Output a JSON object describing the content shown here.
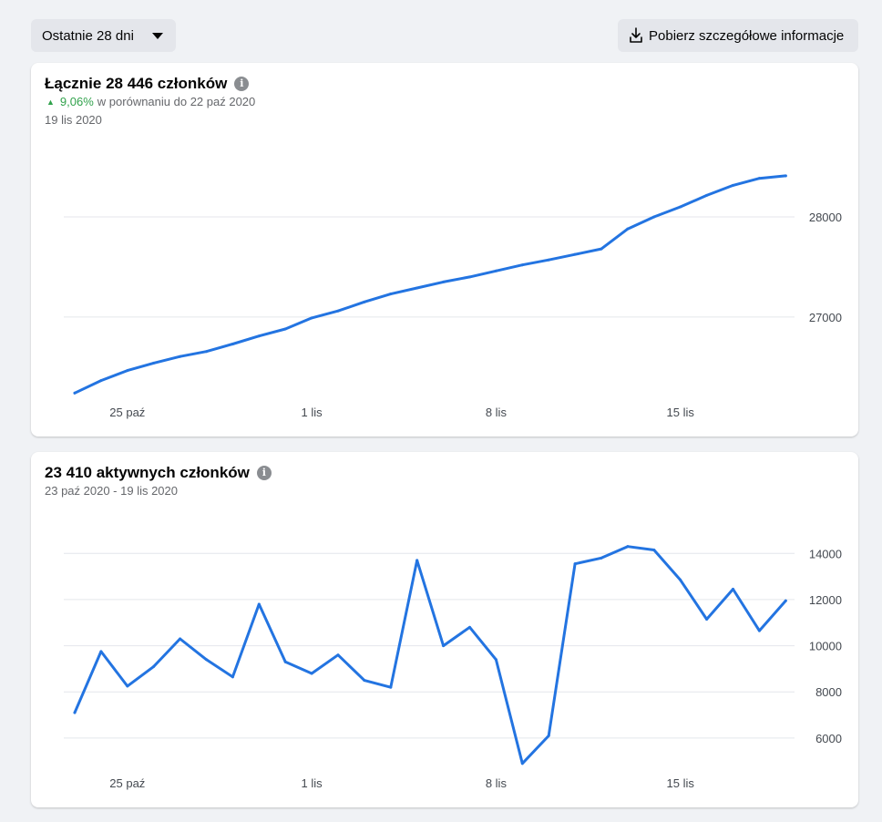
{
  "toolbar": {
    "range_label": "Ostatnie 28 dni",
    "download_label": "Pobierz szczegółowe informacje"
  },
  "colors": {
    "line": "#2374e1",
    "grid": "#e4e6eb",
    "positive": "#31a24c"
  },
  "chart_data": [
    {
      "type": "line",
      "title": "Łącznie 28 446 członków",
      "change_pct": "9,06%",
      "change_text": "w porównaniu do 22 paź 2020",
      "subtitle": "19 lis 2020",
      "x_ticks": [
        "25 paź",
        "1 lis",
        "8 lis",
        "15 lis"
      ],
      "x_tick_index": [
        2,
        9,
        16,
        23
      ],
      "y_ticks": [
        27000,
        28000
      ],
      "ylim": [
        26170,
        28810
      ],
      "grid": true,
      "series": [
        {
          "values": [
            26240,
            26365,
            26465,
            26540,
            26605,
            26655,
            26730,
            26810,
            26880,
            26990,
            27060,
            27150,
            27230,
            27290,
            27350,
            27400,
            27460,
            27520,
            27570,
            27625,
            27680,
            27880,
            28000,
            28100,
            28215,
            28315,
            28385,
            28410
          ]
        }
      ]
    },
    {
      "type": "line",
      "title": "23 410 aktywnych członków",
      "subtitle": "23 paź 2020 - 19 lis 2020",
      "x_ticks": [
        "25 paź",
        "1 lis",
        "8 lis",
        "15 lis"
      ],
      "x_tick_index": [
        2,
        9,
        16,
        23
      ],
      "y_ticks": [
        6000,
        8000,
        10000,
        12000,
        14000
      ],
      "ylim": [
        4575,
        15550
      ],
      "grid": true,
      "series": [
        {
          "values": [
            7100,
            9750,
            8250,
            9100,
            10300,
            9400,
            8650,
            11800,
            9300,
            8800,
            9600,
            8500,
            8200,
            13700,
            10000,
            10800,
            9400,
            4900,
            6100,
            13550,
            13800,
            14300,
            14150,
            12850,
            11150,
            12450,
            10650,
            11950
          ]
        }
      ]
    }
  ]
}
